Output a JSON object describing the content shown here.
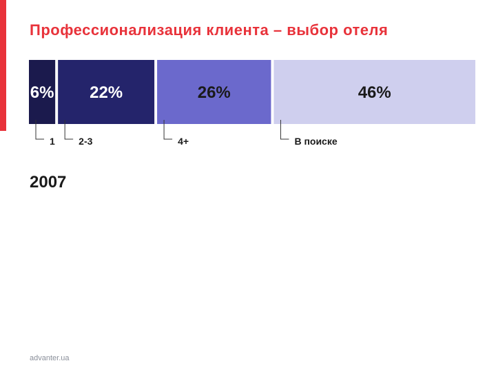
{
  "slide": {
    "title": "Профессионализация клиента – выбор отеля",
    "year": "2007",
    "footer": "advanter.ua",
    "accent_color": "#e8323a"
  },
  "chart_data": {
    "type": "bar",
    "orientation": "stacked-horizontal-100",
    "categories": [
      "1",
      "2-3",
      "4+",
      "В поиске"
    ],
    "values": [
      6,
      22,
      26,
      46
    ],
    "value_labels": [
      "6%",
      "22%",
      "26%",
      "46%"
    ],
    "unit": "%",
    "colors": [
      "#1b1a4d",
      "#24246b",
      "#6b69cc",
      "#cfcfee"
    ],
    "label_colors": [
      "#ffffff",
      "#ffffff",
      "#1a1a1a",
      "#1a1a1a"
    ]
  }
}
